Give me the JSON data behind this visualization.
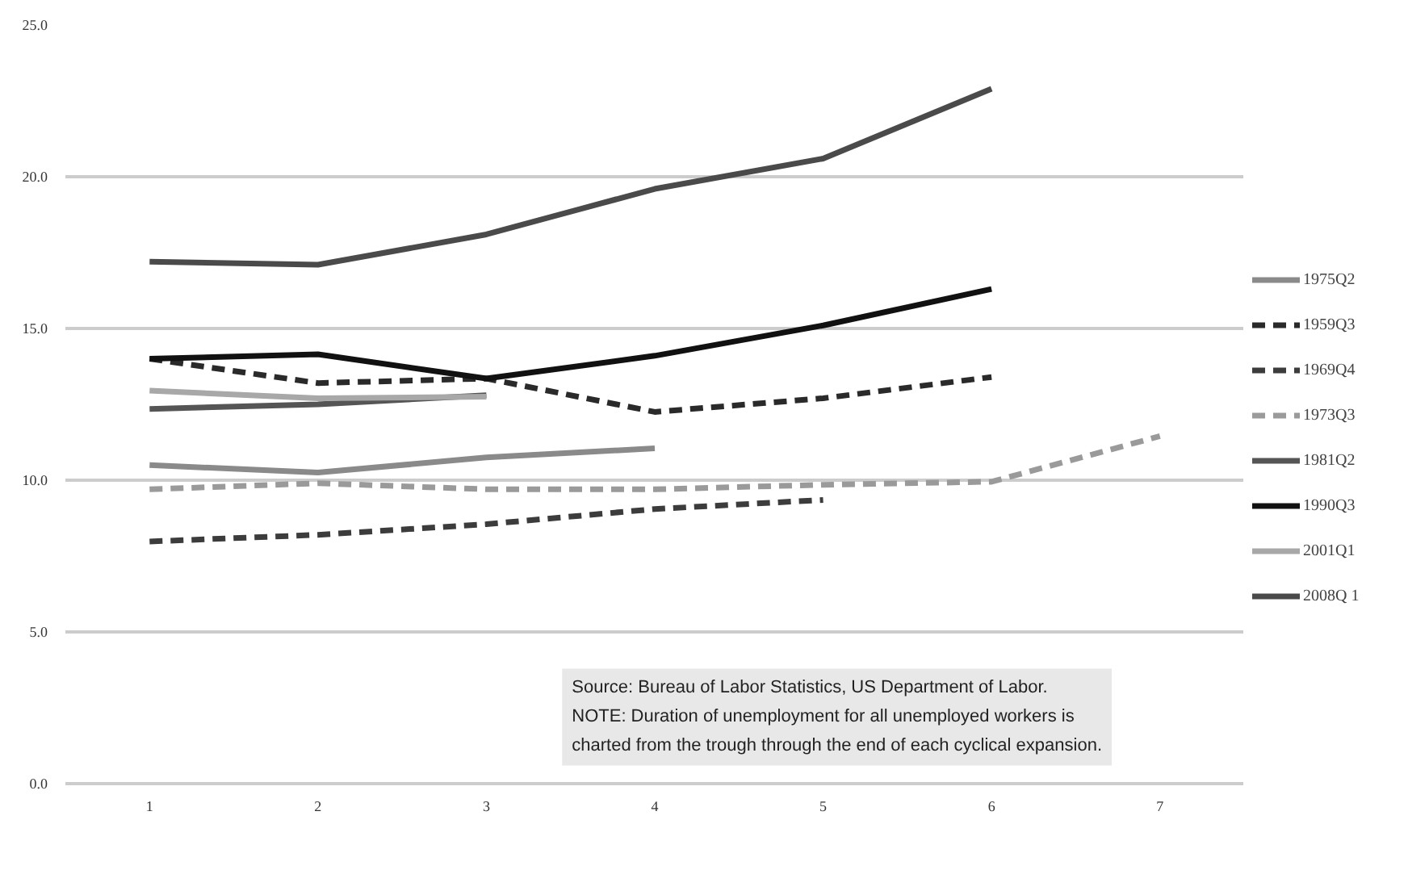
{
  "chart_data": {
    "type": "line",
    "x": [
      1,
      2,
      3,
      4,
      5,
      6,
      7
    ],
    "series": [
      {
        "name": "1975Q2",
        "color": "#8a8a8a",
        "line_style": "solid",
        "values": [
          10.5,
          10.25,
          10.75,
          11.05,
          null,
          null,
          null
        ]
      },
      {
        "name": "1959Q3",
        "color": "#2a2a2a",
        "line_style": "dashed",
        "values": [
          14.0,
          13.2,
          13.35,
          12.25,
          12.7,
          13.4,
          null
        ]
      },
      {
        "name": "1969Q4",
        "color": "#3c3c3c",
        "line_style": "dashed",
        "values": [
          7.98,
          8.2,
          8.55,
          9.05,
          9.35,
          null,
          null
        ]
      },
      {
        "name": "1973Q3",
        "color": "#9a9a9a",
        "line_style": "dashed",
        "values": [
          9.7,
          9.9,
          9.7,
          9.7,
          9.85,
          9.95,
          11.45
        ]
      },
      {
        "name": "1981Q2",
        "color": "#555555",
        "line_style": "solid",
        "values": [
          12.35,
          12.5,
          12.8,
          null,
          null,
          null,
          null
        ]
      },
      {
        "name": "1990Q3",
        "color": "#111111",
        "line_style": "solid",
        "values": [
          14.0,
          14.15,
          13.35,
          14.1,
          15.1,
          16.3,
          null
        ]
      },
      {
        "name": "2001Q1",
        "color": "#a8a8a8",
        "line_style": "solid",
        "values": [
          12.95,
          12.7,
          12.75,
          null,
          null,
          null,
          null
        ]
      },
      {
        "name": "2008Q 1",
        "color": "#4a4a4a",
        "line_style": "solid",
        "values": [
          17.2,
          17.1,
          18.1,
          19.6,
          20.6,
          22.9,
          null
        ]
      }
    ],
    "xlim": [
      0.5,
      7.5
    ],
    "xticks": [
      1,
      2,
      3,
      4,
      5,
      6,
      7
    ],
    "ylim": [
      0,
      25
    ],
    "yticks": [
      {
        "value": 0,
        "label": "0.0"
      },
      {
        "value": 5,
        "label": "5.0"
      },
      {
        "value": 10,
        "label": "10.0"
      },
      {
        "value": 15,
        "label": "15.0"
      },
      {
        "value": 20,
        "label": "20.0"
      },
      {
        "value": 25,
        "label": "25.0"
      }
    ],
    "grid": "y",
    "legend": "right",
    "marker": "none",
    "annotations": [
      "Source: Bureau of Labor Statistics, US Department of Labor.",
      "NOTE: Duration of unemployment for all unemployed workers is\ncharted from the trough through the end of each cyclical expansion."
    ]
  }
}
